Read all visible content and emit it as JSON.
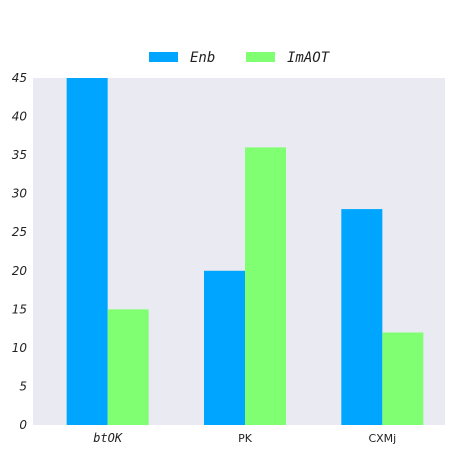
{
  "chart_data": {
    "type": "bar",
    "categories": [
      "btOK",
      "PK",
      "CXMj"
    ],
    "series": [
      {
        "name": "Enb",
        "values": [
          45,
          20,
          28
        ],
        "color": "#00a5ff"
      },
      {
        "name": "ImAOT",
        "values": [
          15,
          36,
          12
        ],
        "color": "#80ff72"
      }
    ],
    "ylim": [
      0,
      45
    ],
    "yticks": [
      0,
      5,
      10,
      15,
      20,
      25,
      30,
      35,
      40,
      45
    ],
    "title": "",
    "xlabel": "",
    "ylabel": "",
    "grid": false,
    "legend_position": "top-center",
    "plot_background": "#eaeaf2"
  }
}
